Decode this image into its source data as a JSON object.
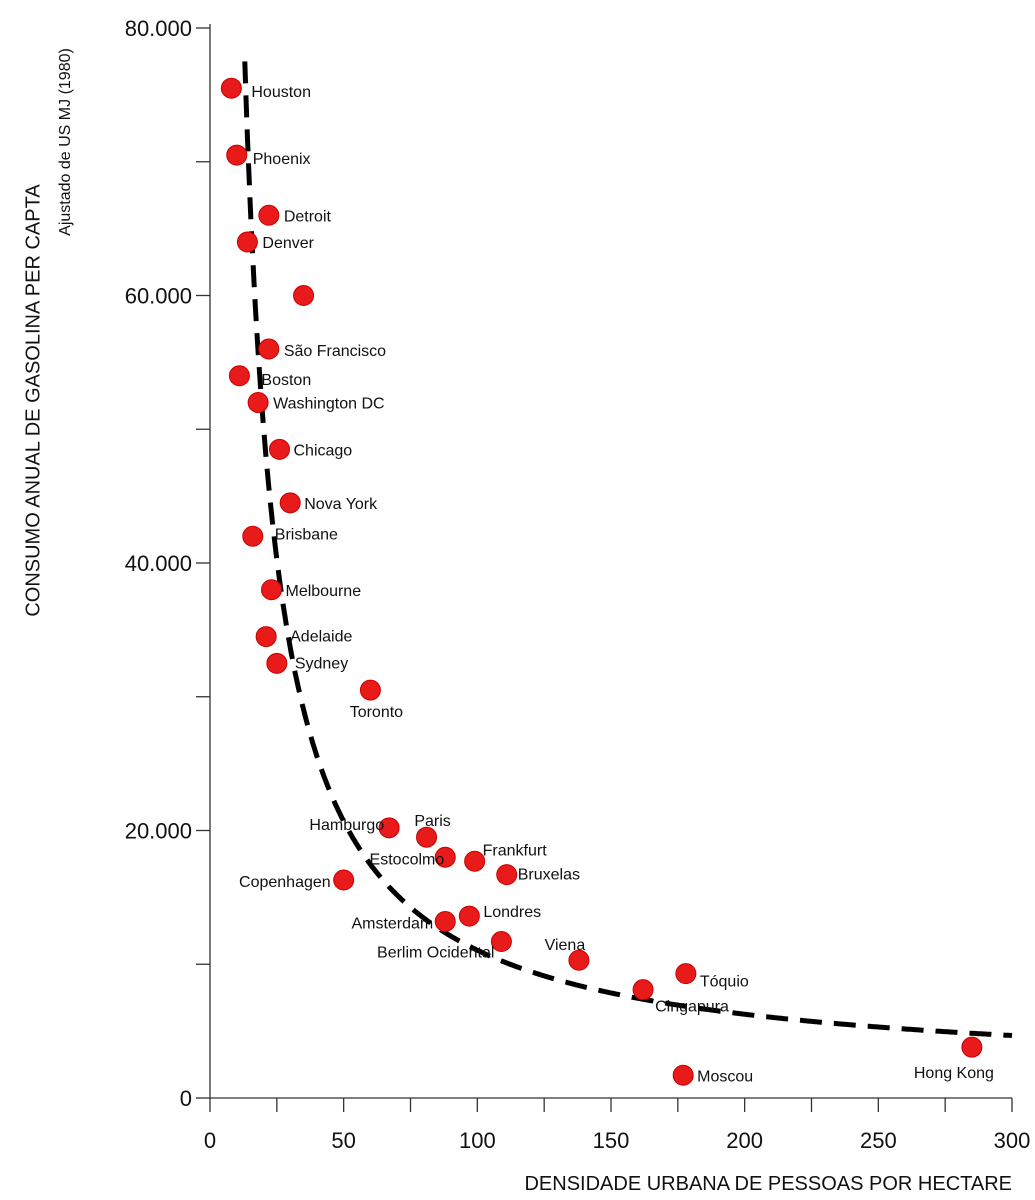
{
  "chart_data": {
    "type": "scatter",
    "title": "",
    "ylabel": "CONSUMO ANUAL DE GASOLINA PER CAPTA",
    "ylabel_sub": "Ajustado de US MJ (1980)",
    "xlabel": "DENSIDADE URBANA DE PESSOAS POR HECTARE",
    "xlim": [
      0,
      300
    ],
    "ylim": [
      0,
      80000
    ],
    "x_ticks": [
      0,
      50,
      100,
      150,
      200,
      250,
      300
    ],
    "x_tick_labels": [
      "0",
      "50",
      "100",
      "150",
      "200",
      "250",
      "300"
    ],
    "y_ticks": [
      0,
      20000,
      40000,
      60000,
      80000
    ],
    "y_tick_labels": [
      "0",
      "20.000",
      "40.000",
      "60.000",
      "80.000"
    ],
    "grid": false,
    "point_color": "#e81a1a",
    "trend_color": "#000000",
    "points": [
      {
        "label": "Houston",
        "x": 8,
        "y": 75500
      },
      {
        "label": "Phoenix",
        "x": 10,
        "y": 70500
      },
      {
        "label": "Detroit",
        "x": 22,
        "y": 66000
      },
      {
        "label": "Denver",
        "x": 14,
        "y": 64000
      },
      {
        "label": "",
        "x": 35,
        "y": 60000
      },
      {
        "label": "São Francisco",
        "x": 22,
        "y": 56000
      },
      {
        "label": "Boston",
        "x": 11,
        "y": 54000
      },
      {
        "label": "Washington DC",
        "x": 18,
        "y": 52000
      },
      {
        "label": "Chicago",
        "x": 26,
        "y": 48500
      },
      {
        "label": "Nova York",
        "x": 30,
        "y": 44500
      },
      {
        "label": "Brisbane",
        "x": 16,
        "y": 42000
      },
      {
        "label": "Melbourne",
        "x": 23,
        "y": 38000
      },
      {
        "label": "Adelaide",
        "x": 21,
        "y": 34500
      },
      {
        "label": "Sydney",
        "x": 25,
        "y": 32500
      },
      {
        "label": "Toronto",
        "x": 60,
        "y": 30500
      },
      {
        "label": "Hamburgo",
        "x": 67,
        "y": 20200
      },
      {
        "label": "Paris",
        "x": 81,
        "y": 19500
      },
      {
        "label": "Estocolmo",
        "x": 88,
        "y": 18000
      },
      {
        "label": "Frankfurt",
        "x": 99,
        "y": 17700
      },
      {
        "label": "Bruxelas",
        "x": 111,
        "y": 16700
      },
      {
        "label": "Copenhagen",
        "x": 50,
        "y": 16300
      },
      {
        "label": "Amsterdam",
        "x": 88,
        "y": 13200
      },
      {
        "label": "Londres",
        "x": 97,
        "y": 13600
      },
      {
        "label": "Berlim Ocidental",
        "x": 109,
        "y": 11700
      },
      {
        "label": "Viena",
        "x": 138,
        "y": 10300
      },
      {
        "label": "Tóquio",
        "x": 178,
        "y": 9300
      },
      {
        "label": "Cingapura",
        "x": 162,
        "y": 8100
      },
      {
        "label": "Moscou",
        "x": 177,
        "y": 1700
      },
      {
        "label": "Hong Kong",
        "x": 285,
        "y": 3800
      }
    ]
  }
}
